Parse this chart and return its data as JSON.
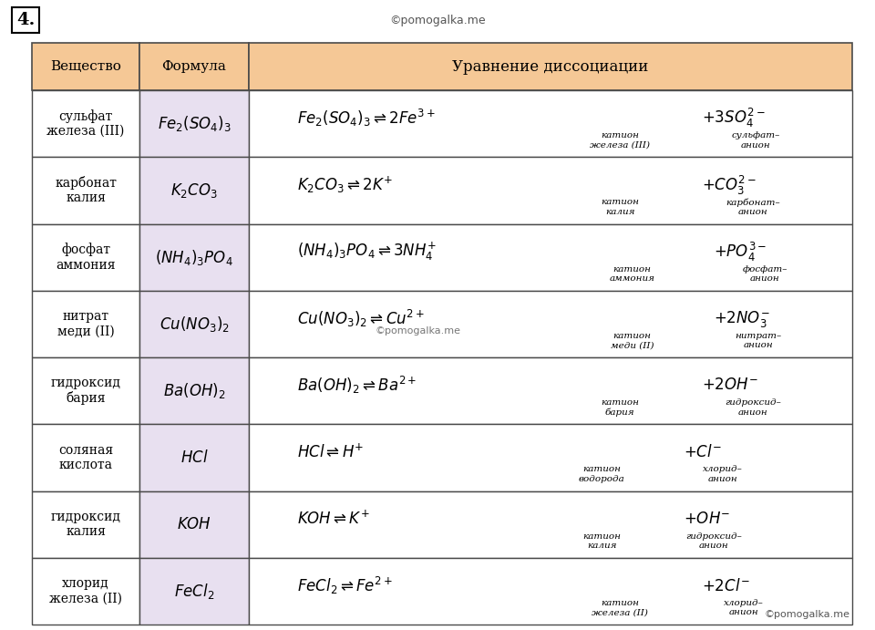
{
  "title_label": "4.",
  "watermark": "©pomogalka.me",
  "bg_color": "#ffffff",
  "header_bg": "#f5c896",
  "formula_col_bg": "#e8e0f0",
  "border_color": "#4a4a4a",
  "rows": [
    {
      "substance": "сульфат\nжелеза (III)",
      "formula": "$Fe_2(SO_4)_3$",
      "eq_left": "$Fe_2(SO_4)_3 \\rightleftharpoons 2Fe^{3+}$",
      "eq_right": "$+ 3SO_4^{2-}$",
      "lbl1": "катион\nжелеза (III)",
      "lbl2": "сульфат–\nанион",
      "lbl1_xoff": 0.615,
      "lbl2_xoff": 0.84,
      "watermark_in_cell": false
    },
    {
      "substance": "карбонат\nкалия",
      "formula": "$K_2CO_3$",
      "eq_left": "$K_2CO_3 \\rightleftharpoons 2K^{+}$",
      "eq_right": "$+ CO_3^{2-}$",
      "lbl1": "катион\nкалия",
      "lbl2": "карбонат–\nанион",
      "lbl1_xoff": 0.615,
      "lbl2_xoff": 0.835,
      "watermark_in_cell": false
    },
    {
      "substance": "фосфат\nаммония",
      "formula": "$(NH_4)_3PO_4$",
      "eq_left": "$(NH_4)_3PO_4 \\rightleftharpoons 3NH_4^{+}$",
      "eq_right": "$+ PO_4^{3-}$",
      "lbl1": "катион\nаммония",
      "lbl2": "фосфат–\nанион",
      "lbl1_xoff": 0.635,
      "lbl2_xoff": 0.855,
      "watermark_in_cell": false
    },
    {
      "substance": "нитрат\nмеди (II)",
      "formula": "$Cu(NO_3)_2$",
      "eq_left": "$Cu(NO_3)_2 \\rightleftharpoons Cu^{2+}$",
      "eq_right": "$+ 2NO_3^{-}$",
      "lbl1": "катион\nмеди (II)",
      "lbl2": "нитрат–\nанион",
      "lbl1_xoff": 0.635,
      "lbl2_xoff": 0.845,
      "watermark_in_cell": true
    },
    {
      "substance": "гидроксид\nбария",
      "formula": "$Ba(OH)_2$",
      "eq_left": "$Ba(OH)_2 \\rightleftharpoons Ba^{2+}$",
      "eq_right": "$+ 2OH^{-}$",
      "lbl1": "катион\nбария",
      "lbl2": "гидроксид–\nанион",
      "lbl1_xoff": 0.615,
      "lbl2_xoff": 0.835,
      "watermark_in_cell": false
    },
    {
      "substance": "соляная\nкислота",
      "formula": "$HCl$",
      "eq_left": "$HCl \\rightleftharpoons H^{+}$",
      "eq_right": "$+ Cl^{-}$",
      "lbl1": "катион\nводорода",
      "lbl2": "хлорид–\nанион",
      "lbl1_xoff": 0.585,
      "lbl2_xoff": 0.785,
      "watermark_in_cell": false
    },
    {
      "substance": "гидроксид\nкалия",
      "formula": "$KOH$",
      "eq_left": "$KOH \\rightleftharpoons K^{+}$",
      "eq_right": "$+ OH^{-}$",
      "lbl1": "катион\nкалия",
      "lbl2": "гидроксид–\nанион",
      "lbl1_xoff": 0.585,
      "lbl2_xoff": 0.77,
      "watermark_in_cell": false
    },
    {
      "substance": "хлорид\nжелеза (II)",
      "formula": "$FeCl_2$",
      "eq_left": "$FeCl_2 \\rightleftharpoons Fe^{2+}$",
      "eq_right": "$+ 2Cl^{-}$",
      "lbl1": "катион\nжелеза (II)",
      "lbl2": "хлорид–\nанион",
      "lbl1_xoff": 0.615,
      "lbl2_xoff": 0.82,
      "watermark_in_cell": false,
      "watermark_bottom": true
    }
  ]
}
